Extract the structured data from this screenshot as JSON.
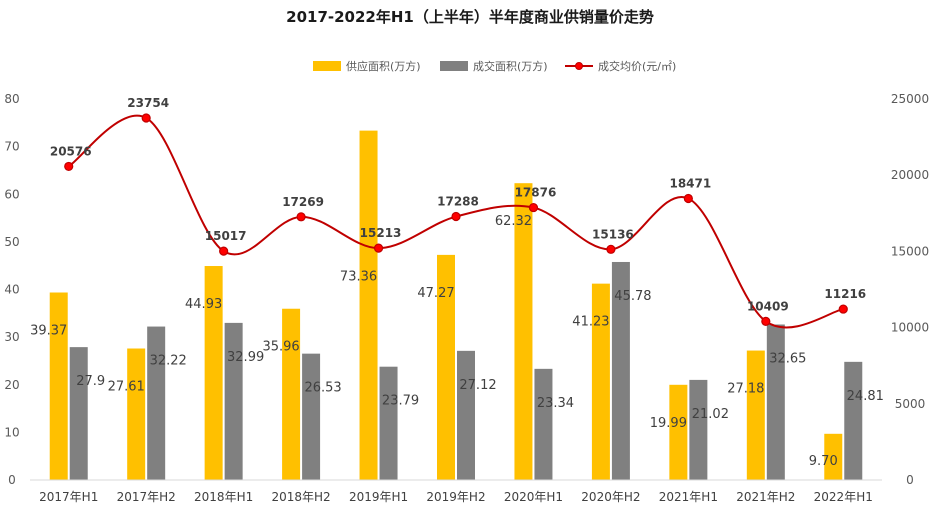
{
  "chart_data": {
    "type": "bar",
    "title": "2017-2022年H1（上半年）半年度商业供销量价走势",
    "categories": [
      "2017年H1",
      "2017年H2",
      "2018年H1",
      "2018年H2",
      "2019年H1",
      "2019年H2",
      "2020年H1",
      "2020年H2",
      "2021年H1",
      "2021年H2",
      "2022年H1"
    ],
    "series": [
      {
        "name": "供应面积(万方)",
        "type": "bar",
        "axis": "left",
        "color": "#FFC000",
        "values": [
          39.37,
          27.61,
          44.93,
          35.96,
          73.36,
          47.27,
          62.32,
          41.23,
          19.99,
          27.18,
          9.7
        ],
        "labels": [
          "39.37",
          "27.61",
          "44.93",
          "35.96",
          "73.36",
          "47.27",
          "62.32",
          "41.23",
          "19.99",
          "27.18",
          "9.70"
        ]
      },
      {
        "name": "成交面积(万方)",
        "type": "bar",
        "axis": "left",
        "color": "#808080",
        "values": [
          27.9,
          32.22,
          32.99,
          26.53,
          23.79,
          27.12,
          23.34,
          45.78,
          21.02,
          32.65,
          24.81
        ],
        "labels": [
          "27.9",
          "32.22",
          "32.99",
          "26.53",
          "23.79",
          "27.12",
          "23.34",
          "45.78",
          "21.02",
          "32.65",
          "24.81"
        ]
      },
      {
        "name": "成交均价(元/㎡)",
        "type": "line",
        "axis": "right",
        "color": "#C00000",
        "values": [
          20576,
          23754,
          15017,
          17269,
          15213,
          17288,
          17876,
          15136,
          18471,
          10409,
          11216
        ],
        "labels": [
          "20576",
          "23754",
          "15017",
          "17269",
          "15213",
          "17288",
          "17876",
          "15136",
          "18471",
          "10409",
          "11216"
        ]
      }
    ],
    "y_left": {
      "min": 0,
      "max": 80,
      "ticks": [
        "0",
        "10",
        "20",
        "30",
        "40",
        "50",
        "60",
        "70",
        "80"
      ]
    },
    "y_right": {
      "min": 0,
      "max": 25000,
      "ticks": [
        "0",
        "5000",
        "10000",
        "15000",
        "20000",
        "25000"
      ]
    },
    "legend_position": "top-center",
    "grid": false
  }
}
